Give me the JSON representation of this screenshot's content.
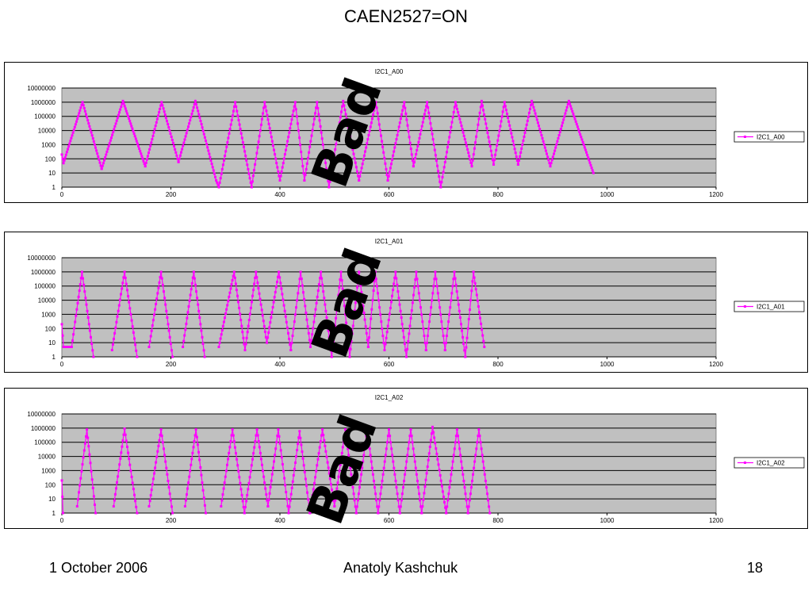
{
  "slide": {
    "title": "CAEN2527=ON",
    "footer_date": "1 October 2006",
    "footer_author": "Anatoly Kashchuk",
    "footer_page": "18",
    "stamp_text": "Bad"
  },
  "colors": {
    "series": "#ff00ff",
    "plot_bg": "#c0c0c0",
    "grid": "#000000"
  },
  "chart_data": [
    {
      "type": "line",
      "title": "I2C1_A00",
      "legend": "I2C1_A00",
      "legend_position": "right",
      "xlim": [
        0,
        1200
      ],
      "xticks": [
        0,
        200,
        400,
        600,
        800,
        1000,
        1200
      ],
      "yscale": "log",
      "ylim": [
        1,
        10000000
      ],
      "yticks": [
        "1",
        "10",
        "100",
        "1000",
        "10000",
        "100000",
        "1000000",
        "10000000"
      ],
      "grid": true,
      "series": [
        {
          "name": "I2C1_A00",
          "segments": [
            [
              [
                0,
                200
              ],
              [
                3,
                50
              ],
              [
                38,
                1000000
              ],
              [
                73,
                20
              ]
            ],
            [
              [
                73,
                20
              ],
              [
                112,
                1200000
              ],
              [
                153,
                30
              ]
            ],
            [
              [
                153,
                30
              ],
              [
                183,
                1000000
              ],
              [
                214,
                60
              ]
            ],
            [
              [
                214,
                60
              ],
              [
                245,
                1200000
              ],
              [
                283,
                3
              ]
            ],
            [
              [
                283,
                3
              ],
              [
                288,
                1
              ],
              [
                318,
                1000000
              ],
              [
                348,
                1
              ]
            ],
            [
              [
                348,
                1
              ],
              [
                372,
                1000000
              ],
              [
                400,
                3
              ]
            ],
            [
              [
                400,
                3
              ],
              [
                428,
                1000000
              ],
              [
                445,
                3
              ]
            ],
            [
              [
                445,
                3
              ],
              [
                468,
                1000000
              ],
              [
                490,
                1
              ]
            ],
            [
              [
                490,
                1
              ],
              [
                516,
                1200000
              ],
              [
                545,
                3
              ]
            ],
            [
              [
                545,
                3
              ],
              [
                576,
                1000000
              ],
              [
                598,
                3
              ]
            ],
            [
              [
                598,
                3
              ],
              [
                628,
                1000000
              ],
              [
                645,
                30
              ]
            ],
            [
              [
                645,
                30
              ],
              [
                670,
                1000000
              ],
              [
                695,
                1
              ]
            ],
            [
              [
                695,
                1
              ],
              [
                722,
                1000000
              ],
              [
                752,
                30
              ]
            ],
            [
              [
                752,
                30
              ],
              [
                770,
                1200000
              ],
              [
                792,
                40
              ]
            ],
            [
              [
                792,
                40
              ],
              [
                812,
                1000000
              ],
              [
                837,
                40
              ]
            ],
            [
              [
                837,
                40
              ],
              [
                862,
                1200000
              ],
              [
                896,
                30
              ]
            ],
            [
              [
                896,
                30
              ],
              [
                930,
                1200000
              ],
              [
                975,
                10
              ]
            ]
          ]
        }
      ]
    },
    {
      "type": "line",
      "title": "I2C1_A01",
      "legend": "I2C1_A01",
      "legend_position": "right",
      "xlim": [
        0,
        1200
      ],
      "xticks": [
        0,
        200,
        400,
        600,
        800,
        1000,
        1200
      ],
      "yscale": "log",
      "ylim": [
        1,
        10000000
      ],
      "yticks": [
        "1",
        "10",
        "100",
        "1000",
        "10000",
        "100000",
        "1000000",
        "10000000"
      ],
      "grid": true,
      "series": [
        {
          "name": "I2C1_A01",
          "segments": [
            [
              [
                0,
                200
              ],
              [
                3,
                5
              ],
              [
                18,
                5
              ],
              [
                37,
                1000000
              ],
              [
                58,
                1
              ]
            ],
            [
              [
                92,
                3
              ],
              [
                115,
                1000000
              ],
              [
                138,
                1
              ]
            ],
            [
              [
                160,
                5
              ],
              [
                182,
                1000000
              ],
              [
                203,
                1
              ]
            ],
            [
              [
                222,
                5
              ],
              [
                242,
                1000000
              ],
              [
                262,
                1
              ]
            ],
            [
              [
                288,
                5
              ],
              [
                316,
                1000000
              ],
              [
                336,
                3
              ]
            ],
            [
              [
                336,
                3
              ],
              [
                356,
                1000000
              ],
              [
                376,
                10
              ]
            ],
            [
              [
                376,
                10
              ],
              [
                398,
                1000000
              ],
              [
                420,
                3
              ]
            ],
            [
              [
                420,
                3
              ],
              [
                438,
                1000000
              ],
              [
                456,
                5
              ]
            ],
            [
              [
                456,
                5
              ],
              [
                475,
                1000000
              ],
              [
                495,
                1
              ]
            ],
            [
              [
                495,
                1
              ],
              [
                512,
                1000000
              ],
              [
                528,
                1
              ]
            ],
            [
              [
                528,
                1
              ],
              [
                545,
                1000000
              ],
              [
                562,
                5
              ]
            ],
            [
              [
                562,
                5
              ],
              [
                575,
                1000000
              ],
              [
                592,
                3
              ]
            ],
            [
              [
                592,
                3
              ],
              [
                612,
                1000000
              ],
              [
                632,
                1
              ]
            ],
            [
              [
                632,
                1
              ],
              [
                650,
                1000000
              ],
              [
                668,
                3
              ]
            ],
            [
              [
                668,
                3
              ],
              [
                685,
                1000000
              ],
              [
                703,
                3
              ]
            ],
            [
              [
                703,
                3
              ],
              [
                720,
                1000000
              ],
              [
                740,
                1
              ]
            ],
            [
              [
                740,
                1
              ],
              [
                755,
                1000000
              ],
              [
                775,
                5
              ]
            ]
          ]
        }
      ]
    },
    {
      "type": "line",
      "title": "I2C1_A02",
      "legend": "I2C1_A02",
      "legend_position": "right",
      "xlim": [
        0,
        1200
      ],
      "xticks": [
        0,
        200,
        400,
        600,
        800,
        1000,
        1200
      ],
      "yscale": "log",
      "ylim": [
        1,
        10000000
      ],
      "yticks": [
        "1",
        "10",
        "100",
        "1000",
        "10000",
        "100000",
        "1000000",
        "10000000"
      ],
      "grid": true,
      "series": [
        {
          "name": "I2C1_A02",
          "segments": [
            [
              [
                0,
                200
              ],
              [
                2,
                1
              ]
            ],
            [
              [
                28,
                3
              ],
              [
                46,
                800000
              ],
              [
                62,
                1
              ]
            ],
            [
              [
                95,
                3
              ],
              [
                115,
                900000
              ],
              [
                138,
                1
              ]
            ],
            [
              [
                160,
                3
              ],
              [
                182,
                800000
              ],
              [
                203,
                1
              ]
            ],
            [
              [
                226,
                3
              ],
              [
                246,
                800000
              ],
              [
                264,
                1
              ]
            ],
            [
              [
                292,
                3
              ],
              [
                313,
                800000
              ],
              [
                335,
                1
              ]
            ],
            [
              [
                335,
                1
              ],
              [
                358,
                800000
              ],
              [
                378,
                3
              ]
            ],
            [
              [
                378,
                3
              ],
              [
                397,
                800000
              ],
              [
                416,
                1
              ]
            ],
            [
              [
                416,
                1
              ],
              [
                436,
                600000
              ],
              [
                455,
                1
              ]
            ],
            [
              [
                455,
                1
              ],
              [
                478,
                800000
              ],
              [
                500,
                3
              ]
            ],
            [
              [
                500,
                3
              ],
              [
                520,
                800000
              ],
              [
                540,
                1
              ]
            ],
            [
              [
                540,
                1
              ],
              [
                560,
                800000
              ],
              [
                580,
                1
              ]
            ],
            [
              [
                580,
                1
              ],
              [
                600,
                800000
              ],
              [
                620,
                1
              ]
            ],
            [
              [
                620,
                1
              ],
              [
                640,
                800000
              ],
              [
                660,
                1
              ]
            ],
            [
              [
                660,
                1
              ],
              [
                680,
                1200000
              ],
              [
                705,
                1
              ]
            ],
            [
              [
                705,
                1
              ],
              [
                725,
                800000
              ],
              [
                745,
                1
              ]
            ],
            [
              [
                745,
                1
              ],
              [
                765,
                800000
              ],
              [
                785,
                1
              ]
            ]
          ]
        }
      ]
    }
  ]
}
